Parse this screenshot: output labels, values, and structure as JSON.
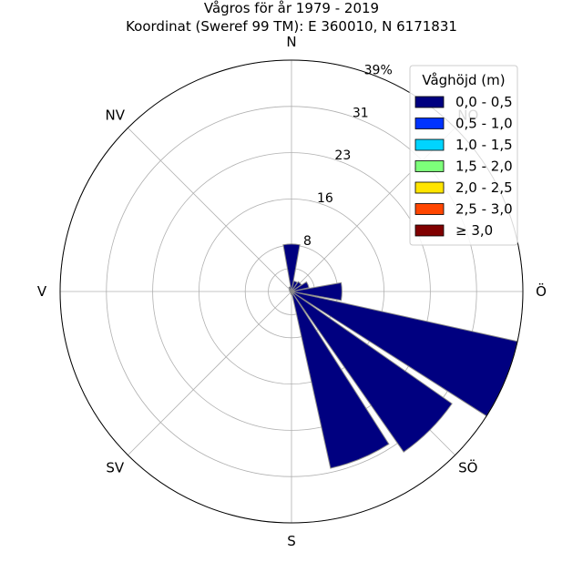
{
  "chart_data": {
    "type": "wind-rose",
    "title_line1": "Vågros för år 1979 - 2019",
    "title_line2": "Koordinat (Sweref 99 TM): E 360010, N 6171831",
    "directions": [
      "N",
      "NO",
      "Ö",
      "SÖ",
      "S",
      "SV",
      "V",
      "NV"
    ],
    "radial_ticks": [
      "8",
      "16",
      "23",
      "31",
      "39%"
    ],
    "radial_tick_values": [
      7.8,
      15.6,
      23.4,
      31.2,
      39.0
    ],
    "rmax": 39.0,
    "legend": {
      "title": "Våghöjd (m)",
      "position": "top-right",
      "entries": [
        {
          "label": "0,0 - 0,5",
          "color": "#000080"
        },
        {
          "label": "0,5 - 1,0",
          "color": "#0033ff"
        },
        {
          "label": "1,0 - 1,5",
          "color": "#00d4ff"
        },
        {
          "label": "1,5 - 2,0",
          "color": "#7dff7a"
        },
        {
          "label": "2,0 - 2,5",
          "color": "#ffe500"
        },
        {
          "label": "2,5 - 3,0",
          "color": "#ff4600"
        },
        {
          "label": "≥ 3,0",
          "color": "#800000"
        }
      ]
    },
    "sector_width_deg": 22.5,
    "series": [
      {
        "name": "0,0 - 0,5",
        "color": "#000080",
        "directions_deg": [
          0,
          22.5,
          45,
          67.5,
          90,
          112.5,
          135,
          157.5,
          180,
          202.5,
          225,
          247.5,
          270,
          292.5,
          315,
          337.5
        ],
        "values": [
          8.0,
          1.8,
          2.0,
          3.0,
          8.5,
          39.0,
          33.0,
          30.5,
          0.5,
          0.3,
          0.2,
          0.2,
          0.3,
          0.3,
          0.5,
          0.8
        ]
      }
    ]
  }
}
